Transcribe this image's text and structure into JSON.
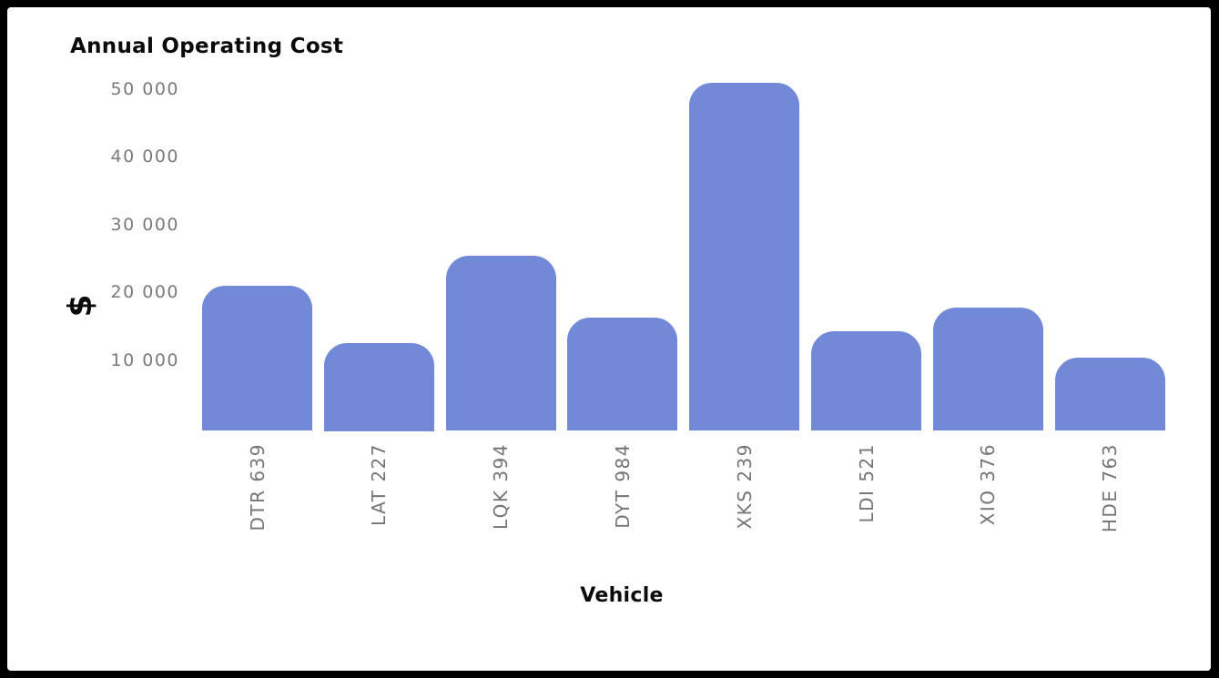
{
  "frame": {
    "background": "#000000",
    "panel_background": "#ffffff"
  },
  "chart_data": {
    "type": "bar",
    "title": "Annual Operating Cost",
    "xlabel": "Vehicle",
    "ylabel": "$",
    "categories": [
      "DTR 639",
      "LAT 227",
      "LQK 394",
      "DYT 984",
      "XKS 239",
      "LDI 521",
      "XIO 376",
      "HDE 763"
    ],
    "values": [
      21000,
      12500,
      25400,
      16200,
      51000,
      14300,
      17700,
      10400
    ],
    "yticks": [
      10000,
      20000,
      30000,
      40000,
      50000
    ],
    "ytick_labels": [
      "10 000",
      "20 000",
      "30 000",
      "40 000",
      "50 000"
    ],
    "ylim": [
      0,
      53000
    ],
    "grid": false,
    "legend": false,
    "bar_color": "#7289d8",
    "tick_label_color": "#7a7a7a",
    "text_color": "#0b0b0b"
  }
}
